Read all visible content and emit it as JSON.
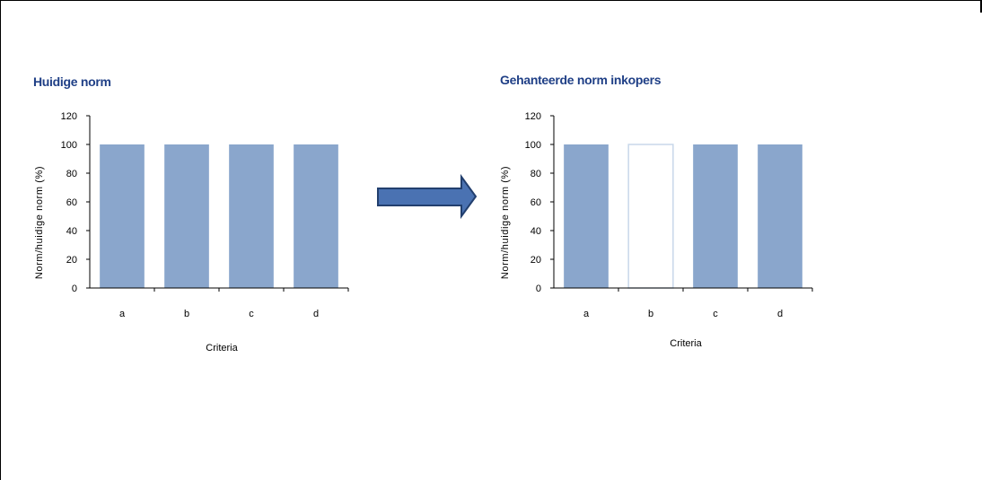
{
  "colors": {
    "bar_fill": "#8aa6cc",
    "bar_outline": "#c8d7ea",
    "title_color": "#1f3f86",
    "arrow_fill": "#4a72b2",
    "arrow_stroke": "#223f6e"
  },
  "arrow_icon": "right-arrow-icon",
  "chart_data": [
    {
      "type": "bar",
      "title": "Huidige norm",
      "xlabel": "Criteria",
      "ylabel": "Norm/huidige norm (%)",
      "categories": [
        "a",
        "b",
        "c",
        "d"
      ],
      "values": [
        100,
        100,
        100,
        100
      ],
      "hollow": [
        false,
        false,
        false,
        false
      ],
      "ylim": [
        0,
        120
      ],
      "yticks": [
        "0",
        "20",
        "40",
        "60",
        "80",
        "100",
        "120"
      ],
      "grid": false,
      "legend": "none"
    },
    {
      "type": "bar",
      "title": "Gehanteerde norm inkopers",
      "xlabel": "Criteria",
      "ylabel": "Norm/huidige norm (%)",
      "categories": [
        "a",
        "b",
        "c",
        "d"
      ],
      "values": [
        100,
        100,
        100,
        100
      ],
      "hollow": [
        false,
        true,
        false,
        false
      ],
      "ylim": [
        0,
        120
      ],
      "yticks": [
        "0",
        "20",
        "40",
        "60",
        "80",
        "100",
        "120"
      ],
      "grid": false,
      "legend": "none"
    }
  ]
}
